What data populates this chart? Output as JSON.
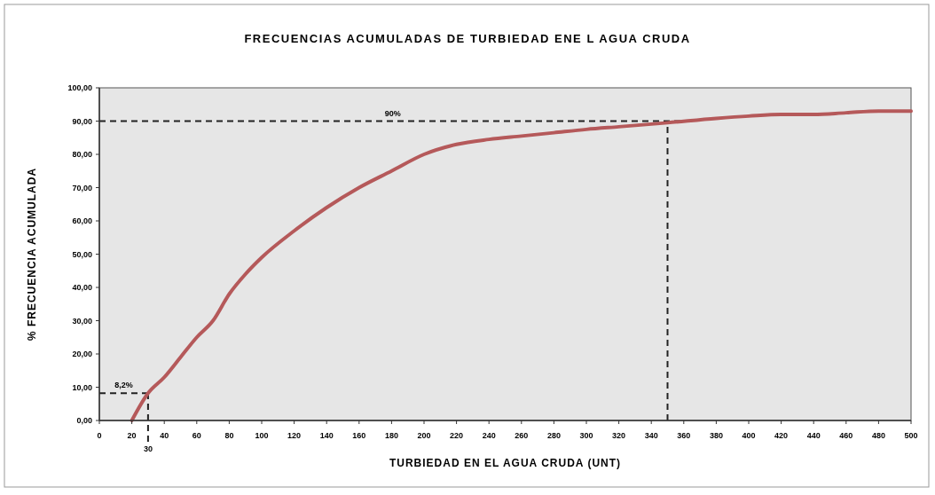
{
  "chart_data": {
    "type": "line",
    "title": "FRECUENCIAS ACUMULADAS DE TURBIEDAD ENE L AGUA CRUDA",
    "xlabel": "TURBIEDAD EN EL AGUA CRUDA (UNT)",
    "ylabel": "% FRECUENCIA ACUMULADA",
    "series": [
      {
        "color": "#b5595a",
        "x": [
          20,
          30,
          40,
          50,
          60,
          70,
          80,
          90,
          100,
          120,
          140,
          160,
          180,
          200,
          220,
          240,
          260,
          280,
          300,
          320,
          350,
          380,
          400,
          420,
          440,
          460,
          480,
          500
        ],
        "values": [
          0,
          8.2,
          13,
          19,
          25,
          30,
          38,
          44,
          49,
          57,
          64,
          70,
          75,
          80,
          83,
          84.5,
          85.5,
          86.5,
          87.5,
          88.3,
          89.5,
          90.8,
          91.5,
          92,
          92,
          92.5,
          93,
          93
        ]
      }
    ],
    "xlim": [
      0,
      500
    ],
    "xticks": [
      0,
      20,
      40,
      60,
      80,
      100,
      120,
      140,
      160,
      180,
      200,
      220,
      240,
      260,
      280,
      300,
      320,
      340,
      360,
      380,
      400,
      420,
      440,
      460,
      480,
      500
    ],
    "ylim": [
      0,
      100
    ],
    "yticks": [
      {
        "value": 0,
        "label": "0,00"
      },
      {
        "value": 10,
        "label": "10,00"
      },
      {
        "value": 20,
        "label": "20,00"
      },
      {
        "value": 30,
        "label": "30,00"
      },
      {
        "value": 40,
        "label": "40,00"
      },
      {
        "value": 50,
        "label": "50,00"
      },
      {
        "value": 60,
        "label": "60,00"
      },
      {
        "value": 70,
        "label": "70,00"
      },
      {
        "value": 80,
        "label": "80,00"
      },
      {
        "value": 90,
        "label": "90,00"
      },
      {
        "value": 100,
        "label": "100,00"
      }
    ],
    "ref_lines": [
      {
        "axis": "y",
        "value": 90,
        "label": "90%",
        "color": "#222222",
        "line_style": "dashed"
      },
      {
        "axis": "x",
        "value": 350,
        "label": null,
        "color": "#222222",
        "line_style": "dashed"
      },
      {
        "axis": "y",
        "value": 8.2,
        "label": "8,2%",
        "color": "#222222",
        "line_style": "dashed"
      },
      {
        "axis": "x",
        "value": 30,
        "label": "30",
        "color": "#222222",
        "line_style": "dashed"
      }
    ],
    "grid": false,
    "marker": "none",
    "line_style": "solid"
  }
}
